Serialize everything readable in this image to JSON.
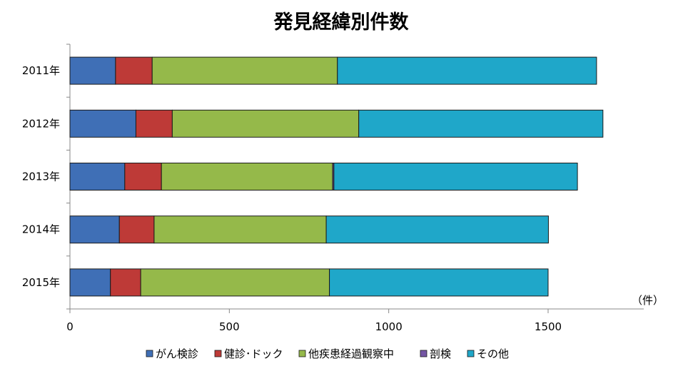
{
  "chart_data": {
    "type": "bar",
    "orientation": "horizontal",
    "stacked": true,
    "title": "発見経緯別件数",
    "unit_label": "（件）",
    "categories": [
      "2011年",
      "2012年",
      "2013年",
      "2014年",
      "2015年"
    ],
    "x_ticks": [
      0,
      500,
      1000,
      1500
    ],
    "xlim": [
      0,
      1800
    ],
    "grid": false,
    "legend_position": "bottom",
    "series": [
      {
        "name": "がん検診",
        "color": "#3f6fb6",
        "values": [
          143,
          207,
          172,
          155,
          127
        ]
      },
      {
        "name": "健診･ドック",
        "color": "#be3a37",
        "values": [
          115,
          114,
          115,
          109,
          95
        ]
      },
      {
        "name": "他疾患経過観察中",
        "color": "#95b94a",
        "values": [
          581,
          585,
          537,
          540,
          592
        ]
      },
      {
        "name": "剖検",
        "color": "#7455a3",
        "values": [
          0,
          0,
          4,
          0,
          0
        ]
      },
      {
        "name": "その他",
        "color": "#1fa7c9",
        "values": [
          813,
          766,
          764,
          697,
          686
        ]
      }
    ]
  }
}
